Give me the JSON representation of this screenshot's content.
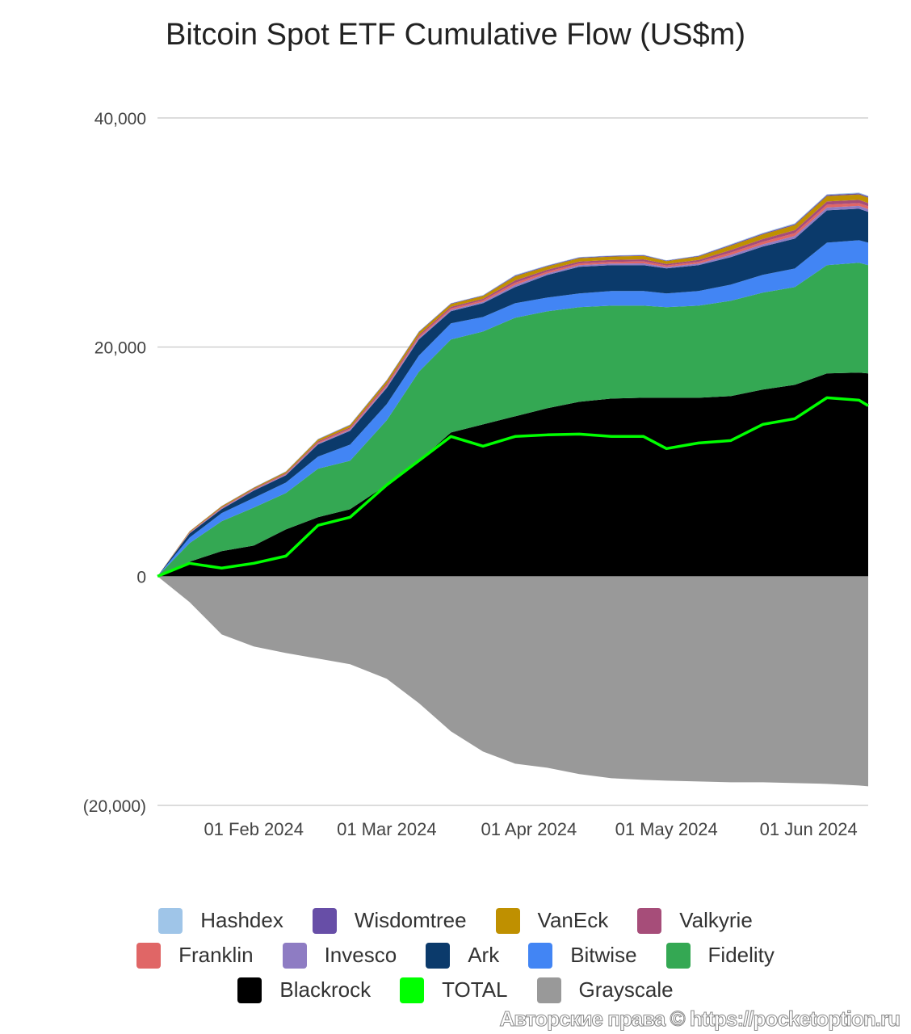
{
  "chart_data": {
    "type": "area",
    "stacked": true,
    "title": "Bitcoin Spot ETF Cumulative Flow (US$m)",
    "xlabel": "",
    "ylabel": "",
    "ylim": [
      -20000,
      40000
    ],
    "y_ticks": [
      {
        "value": 40000,
        "label": "40,000"
      },
      {
        "value": 20000,
        "label": "20,000"
      },
      {
        "value": 0,
        "label": "0"
      },
      {
        "value": -20000,
        "label": "(20,000)"
      }
    ],
    "x_ticks": [
      {
        "date": "2024-02-01",
        "label": "01 Feb 2024"
      },
      {
        "date": "2024-03-01",
        "label": "01 Mar 2024"
      },
      {
        "date": "2024-04-01",
        "label": "01 Apr 2024"
      },
      {
        "date": "2024-05-01",
        "label": "01 May 2024"
      },
      {
        "date": "2024-06-01",
        "label": "01 Jun 2024"
      }
    ],
    "xlim": [
      "2024-01-11",
      "2024-06-14"
    ],
    "grid": true,
    "legend_position": "bottom",
    "x": [
      "2024-01-11",
      "2024-01-18",
      "2024-01-25",
      "2024-02-01",
      "2024-02-08",
      "2024-02-15",
      "2024-02-22",
      "2024-03-01",
      "2024-03-08",
      "2024-03-15",
      "2024-03-22",
      "2024-03-29",
      "2024-04-05",
      "2024-04-12",
      "2024-04-19",
      "2024-04-26",
      "2024-05-01",
      "2024-05-08",
      "2024-05-15",
      "2024-05-22",
      "2024-05-29",
      "2024-06-05",
      "2024-06-12",
      "2024-06-14"
    ],
    "series": [
      {
        "name": "Blackrock",
        "color": "#000000",
        "kind": "area",
        "values": [
          0,
          1270,
          2190,
          2680,
          4090,
          5150,
          5850,
          7970,
          10080,
          12550,
          13250,
          13960,
          14660,
          15230,
          15510,
          15580,
          15580,
          15580,
          15720,
          16290,
          16710,
          17700,
          17770,
          17700
        ]
      },
      {
        "name": "Fidelity",
        "color": "#34a853",
        "kind": "area",
        "values": [
          0,
          1620,
          2610,
          3310,
          3170,
          4230,
          4230,
          5640,
          7760,
          8110,
          8110,
          8600,
          8460,
          8250,
          8110,
          8040,
          7900,
          8040,
          8320,
          8460,
          8530,
          9450,
          9590,
          9450
        ]
      },
      {
        "name": "Bitwise",
        "color": "#4285f4",
        "kind": "area",
        "values": [
          0,
          490,
          710,
          850,
          920,
          1060,
          1410,
          1410,
          1410,
          1410,
          1270,
          1270,
          1200,
          1200,
          1270,
          1270,
          1200,
          1270,
          1410,
          1550,
          1620,
          1970,
          1970,
          1970
        ]
      },
      {
        "name": "Ark",
        "color": "#0b3a6b",
        "kind": "area",
        "values": [
          0,
          350,
          350,
          630,
          630,
          1060,
          1200,
          1410,
          1410,
          1060,
          1200,
          1410,
          1970,
          2330,
          2260,
          2260,
          2190,
          2260,
          2400,
          2470,
          2610,
          2820,
          2750,
          2680
        ]
      },
      {
        "name": "Invesco",
        "color": "#8e7cc3",
        "kind": "area",
        "values": [
          0,
          40,
          50,
          50,
          60,
          80,
          100,
          120,
          120,
          120,
          120,
          180,
          140,
          140,
          140,
          160,
          120,
          140,
          190,
          200,
          230,
          240,
          240,
          240
        ]
      },
      {
        "name": "Franklin",
        "color": "#e06666",
        "kind": "area",
        "values": [
          0,
          40,
          50,
          50,
          60,
          90,
          100,
          130,
          130,
          130,
          130,
          190,
          150,
          150,
          150,
          170,
          130,
          150,
          200,
          220,
          240,
          250,
          250,
          250
        ]
      },
      {
        "name": "Valkyrie",
        "color": "#a64d79",
        "kind": "area",
        "values": [
          0,
          40,
          60,
          60,
          70,
          100,
          110,
          140,
          140,
          140,
          140,
          210,
          170,
          170,
          170,
          180,
          140,
          170,
          230,
          240,
          270,
          280,
          280,
          280
        ]
      },
      {
        "name": "VanEck",
        "color": "#bf9000",
        "kind": "area",
        "values": [
          0,
          70,
          90,
          90,
          120,
          160,
          180,
          240,
          240,
          240,
          240,
          350,
          290,
          290,
          290,
          300,
          240,
          290,
          370,
          400,
          440,
          470,
          470,
          470
        ]
      },
      {
        "name": "Wisdomtree",
        "color": "#674ea7",
        "kind": "area",
        "values": [
          0,
          10,
          20,
          20,
          20,
          30,
          40,
          50,
          50,
          50,
          50,
          70,
          60,
          60,
          60,
          60,
          50,
          60,
          80,
          80,
          90,
          100,
          100,
          100
        ]
      },
      {
        "name": "Hashdex",
        "color": "#9fc5e8",
        "kind": "area",
        "values": [
          0,
          10,
          10,
          10,
          20,
          30,
          30,
          30,
          30,
          30,
          30,
          60,
          40,
          40,
          40,
          50,
          30,
          40,
          60,
          60,
          70,
          70,
          70,
          70
        ]
      },
      {
        "name": "Grayscale",
        "color": "#999999",
        "kind": "area",
        "values": [
          0,
          -2260,
          -5080,
          -6130,
          -6700,
          -7190,
          -7680,
          -8950,
          -11070,
          -13540,
          -15300,
          -16360,
          -16710,
          -17270,
          -17630,
          -17770,
          -17840,
          -17910,
          -17980,
          -17980,
          -18050,
          -18120,
          -18260,
          -18330
        ]
      },
      {
        "name": "TOTAL",
        "color": "#00ff00",
        "kind": "line",
        "values": [
          0,
          1130,
          710,
          1130,
          1760,
          4440,
          5150,
          7970,
          10080,
          12200,
          11350,
          12200,
          12340,
          12410,
          12200,
          12200,
          11140,
          11630,
          11840,
          13250,
          13750,
          15580,
          15370,
          14880
        ]
      }
    ]
  },
  "legend": {
    "rows": [
      [
        {
          "name": "Hashdex",
          "color": "#9fc5e8"
        },
        {
          "name": "Wisdomtree",
          "color": "#674ea7"
        },
        {
          "name": "VanEck",
          "color": "#bf9000"
        },
        {
          "name": "Valkyrie",
          "color": "#a64d79"
        }
      ],
      [
        {
          "name": "Franklin",
          "color": "#e06666"
        },
        {
          "name": "Invesco",
          "color": "#8e7cc3"
        },
        {
          "name": "Ark",
          "color": "#0b3a6b"
        },
        {
          "name": "Bitwise",
          "color": "#4285f4"
        },
        {
          "name": "Fidelity",
          "color": "#34a853"
        }
      ],
      [
        {
          "name": "Blackrock",
          "color": "#000000"
        },
        {
          "name": "TOTAL",
          "color": "#00ff00"
        },
        {
          "name": "Grayscale",
          "color": "#999999"
        }
      ]
    ]
  },
  "watermark": "Авторские права © https://pocketoption.ru"
}
